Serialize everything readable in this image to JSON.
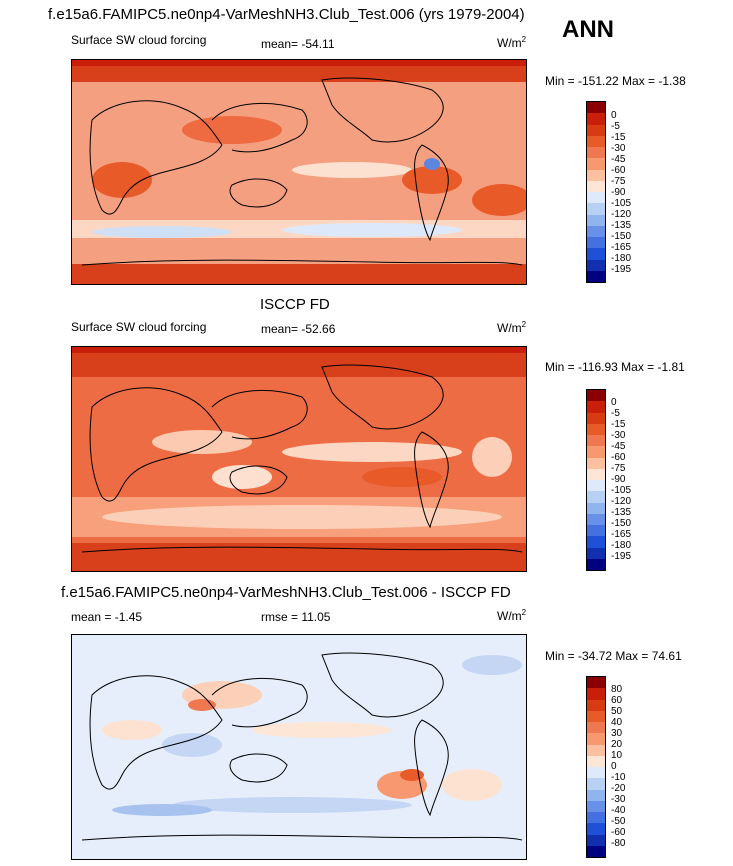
{
  "season": "ANN",
  "panels": [
    {
      "title": "f.e15a6.FAMIPC5.ne0np4-VarMeshNH3.Club_Test.006 (yrs 1979-2004)",
      "left_label": "Surface SW cloud forcing",
      "center_label": "mean= -54.11",
      "units": "W/m",
      "units_exp": "2",
      "minmax": "Min = -151.22 Max =  -1.38",
      "levels": [
        "0",
        "-5",
        "-15",
        "-30",
        "-45",
        "-60",
        "-75",
        "-90",
        "-105",
        "-120",
        "-135",
        "-150",
        "-165",
        "-180",
        "-195"
      ],
      "colors": [
        "#8b0000",
        "#c81e0a",
        "#d83a14",
        "#e85a28",
        "#f07850",
        "#f89870",
        "#fcc0a0",
        "#fde6d6",
        "#ddeafa",
        "#b8d0f4",
        "#90b4ee",
        "#6890e8",
        "#4470e0",
        "#2050d8",
        "#1030b0",
        "#000080"
      ]
    },
    {
      "title": "ISCCP FD",
      "left_label": "Surface SW cloud forcing",
      "center_label": "mean= -52.66",
      "units": "W/m",
      "units_exp": "2",
      "minmax": "Min = -116.93 Max =  -1.81",
      "levels": [
        "0",
        "-5",
        "-15",
        "-30",
        "-45",
        "-60",
        "-75",
        "-90",
        "-105",
        "-120",
        "-135",
        "-150",
        "-165",
        "-180",
        "-195"
      ],
      "colors": [
        "#8b0000",
        "#c81e0a",
        "#d83a14",
        "#e85a28",
        "#f07850",
        "#f89870",
        "#fcc0a0",
        "#fde6d6",
        "#ddeafa",
        "#b8d0f4",
        "#90b4ee",
        "#6890e8",
        "#4470e0",
        "#2050d8",
        "#1030b0",
        "#000080"
      ]
    },
    {
      "title": "f.e15a6.FAMIPC5.ne0np4-VarMeshNH3.Club_Test.006 - ISCCP FD",
      "left_label": "mean =  -1.45",
      "center_label": "rmse =  11.05",
      "units": "W/m",
      "units_exp": "2",
      "minmax": "Min = -34.72 Max =  74.61",
      "levels": [
        "80",
        "60",
        "50",
        "40",
        "30",
        "20",
        "10",
        "0",
        "-10",
        "-20",
        "-30",
        "-40",
        "-50",
        "-60",
        "-80"
      ],
      "colors": [
        "#8b0000",
        "#c81e0a",
        "#d83a14",
        "#e85a28",
        "#f07850",
        "#f89870",
        "#fcc0a0",
        "#fde6d6",
        "#ddeafa",
        "#b8d0f4",
        "#90b4ee",
        "#6890e8",
        "#4470e0",
        "#2050d8",
        "#1030b0",
        "#000080"
      ]
    }
  ]
}
